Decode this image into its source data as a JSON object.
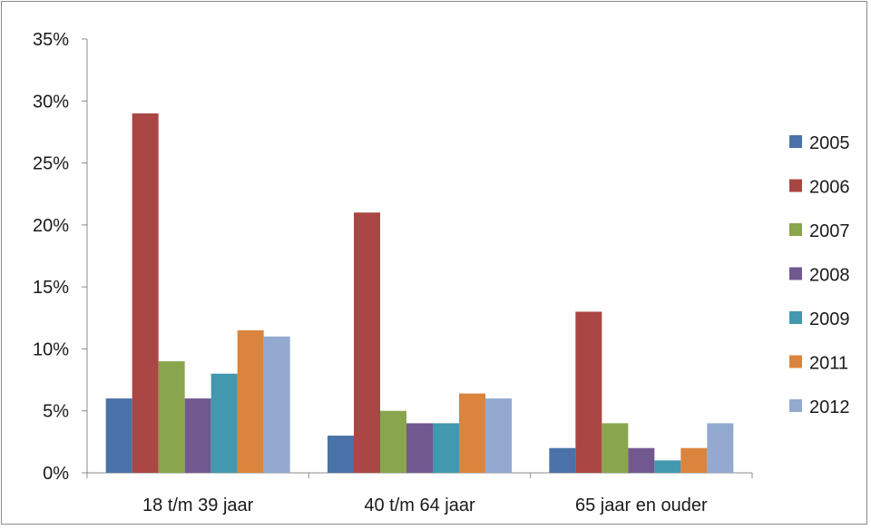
{
  "chart_data": {
    "type": "bar",
    "categories": [
      "18 t/m 39 jaar",
      "40 t/m 64 jaar",
      "65 jaar en ouder"
    ],
    "series": [
      {
        "name": "2005",
        "color": "#4a72a8",
        "values": [
          6,
          3,
          2
        ]
      },
      {
        "name": "2006",
        "color": "#aa4643",
        "values": [
          29,
          21,
          13
        ]
      },
      {
        "name": "2007",
        "color": "#89a54e",
        "values": [
          9,
          5,
          4
        ]
      },
      {
        "name": "2008",
        "color": "#71588f",
        "values": [
          6,
          4,
          2
        ]
      },
      {
        "name": "2009",
        "color": "#4198af",
        "values": [
          8,
          4,
          1
        ]
      },
      {
        "name": "2011",
        "color": "#db843d",
        "values": [
          11.5,
          6.4,
          2
        ]
      },
      {
        "name": "2012",
        "color": "#93a9cf",
        "values": [
          11,
          6,
          4
        ]
      }
    ],
    "ylim": [
      0,
      35
    ],
    "yticks": [
      "0%",
      "5%",
      "10%",
      "15%",
      "20%",
      "25%",
      "30%",
      "35%"
    ],
    "ytick_values": [
      0,
      5,
      10,
      15,
      20,
      25,
      30,
      35
    ],
    "title": "",
    "xlabel": "",
    "ylabel": "",
    "grid": false,
    "legend_position": "right"
  }
}
